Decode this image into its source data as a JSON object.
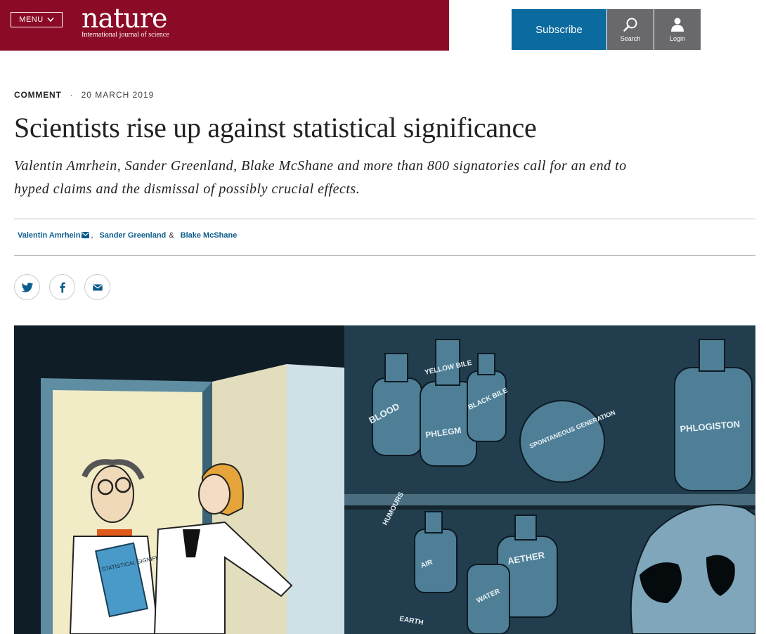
{
  "header": {
    "menu_label": "MENU",
    "logo_word": "nature",
    "logo_tagline": "International journal of science",
    "subscribe_label": "Subscribe",
    "search_label": "Search",
    "login_label": "Login",
    "brand_color": "#8b0a25",
    "subscribe_color": "#0b6a9e"
  },
  "article": {
    "type": "COMMENT",
    "separator": "·",
    "date": "20 MARCH 2019",
    "title": "Scientists rise up against statistical significance",
    "standfirst": "Valentin Amrhein, Sander Greenland, Blake McShane and more than 800 signatories call for an end to hyped claims and the dismissal of possibly crucial effects.",
    "authors": [
      {
        "name": "Valentin Amrhein",
        "sep": ","
      },
      {
        "name": "Sander Greenland",
        "sep": "&"
      },
      {
        "name": "Blake McShane",
        "sep": ""
      }
    ]
  },
  "share": {
    "icons": [
      "twitter-icon",
      "facebook-icon",
      "email-icon"
    ]
  },
  "illustration": {
    "labels": {
      "blood": "BLOOD",
      "yellow_bile": "YELLOW BILE",
      "black_bile": "BLACK BILE",
      "phlegm": "PHLEGM",
      "spontaneous": "SPONTANEOUS GENERATION",
      "phlogiston": "PHLOGISTON",
      "humours": "HUMOURS",
      "air": "AIR",
      "aether": "AETHER",
      "water": "WATER",
      "earth": "EARTH",
      "book": "STATISTICAL SIGNIFICANCE"
    }
  }
}
